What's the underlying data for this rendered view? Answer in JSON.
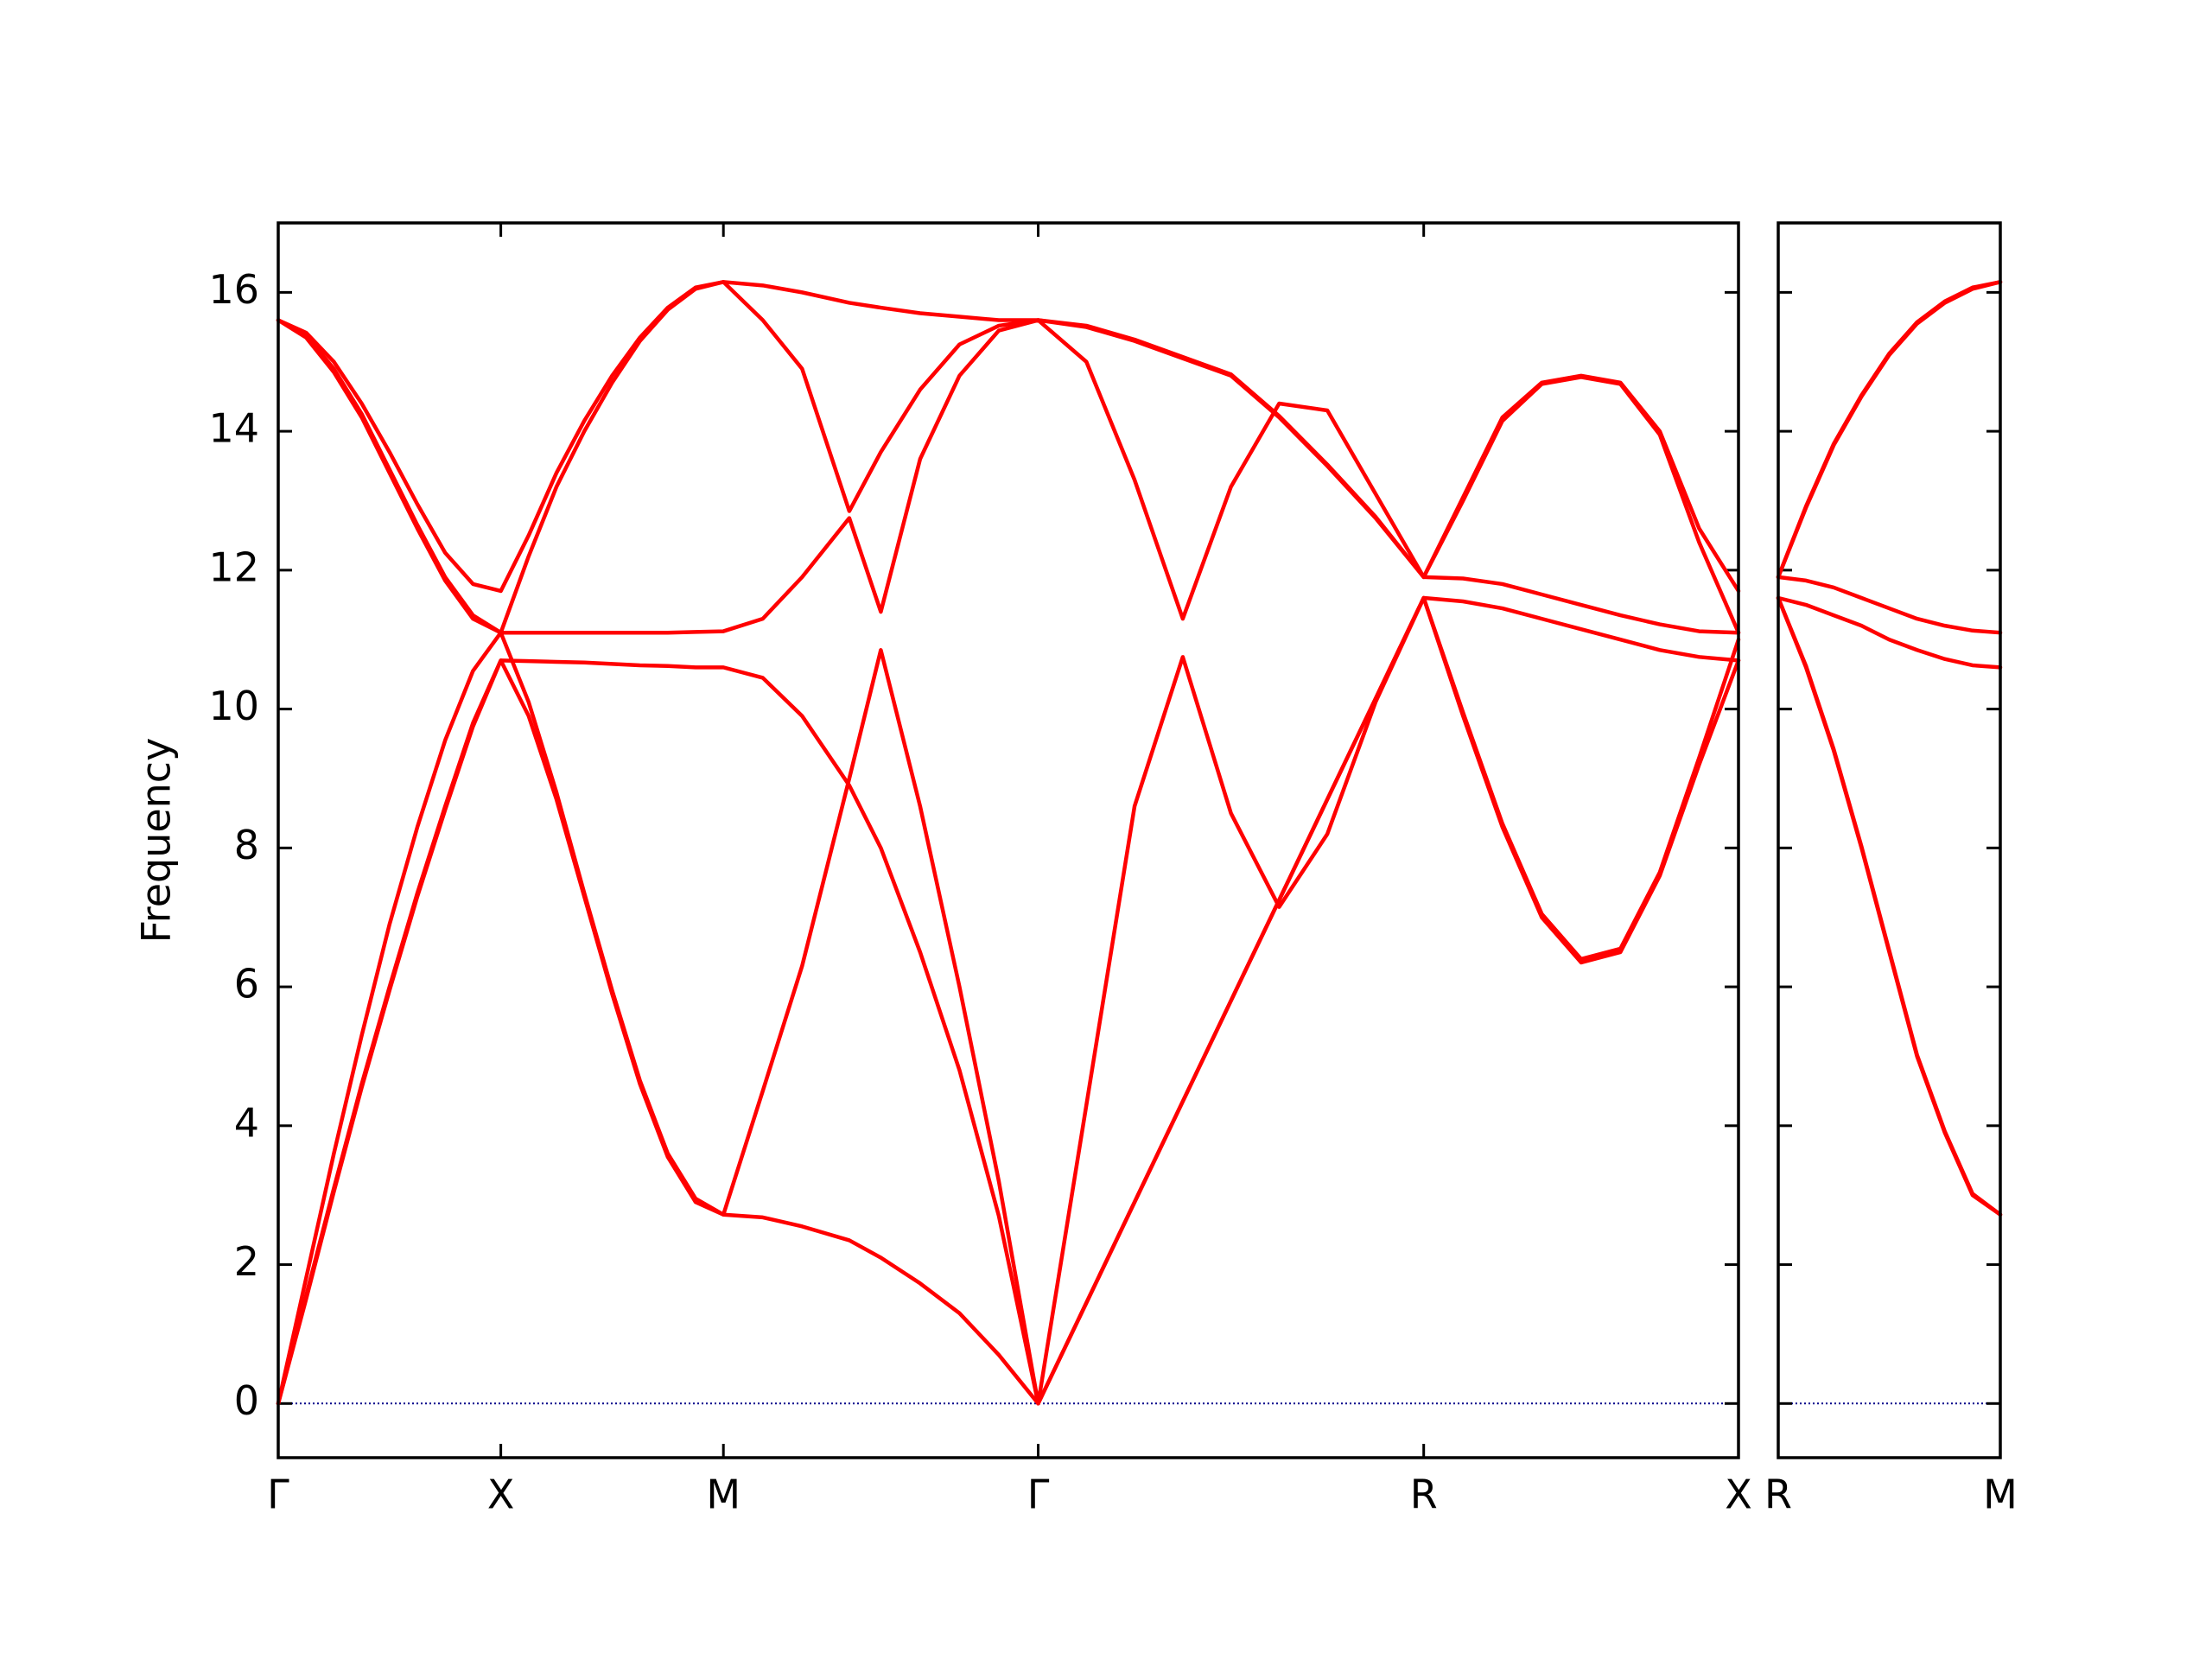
{
  "chart_data": [
    {
      "type": "line",
      "ylabel": "Frequency",
      "x": [
        0,
        0.0625,
        0.125,
        0.1875,
        0.25,
        0.3125,
        0.375,
        0.4375,
        0.5,
        0.5625,
        0.625,
        0.6875,
        0.75,
        0.8125,
        0.875,
        0.9375,
        1.0,
        1.0884,
        1.1768,
        1.2828,
        1.3536,
        1.4419,
        1.5303,
        1.6187,
        1.7071,
        1.8154,
        1.9236,
        2.0319,
        2.1401,
        2.2484,
        2.3566,
        2.4649,
        2.5731,
        2.6615,
        2.7499,
        2.8383,
        2.9267,
        3.015,
        3.1034,
        3.1918,
        3.2802
      ],
      "series": [
        {
          "color": "#ff0000",
          "values": [
            0,
            1.55,
            3.1,
            4.6,
            6.0,
            7.35,
            8.6,
            9.8,
            10.7,
            9.9,
            8.7,
            7.3,
            5.9,
            4.6,
            3.55,
            2.9,
            2.72,
            2.68,
            2.55,
            2.35,
            2.1,
            1.73,
            1.3,
            0.7,
            0,
            1.45,
            2.9,
            4.35,
            5.8,
            7.25,
            8.7,
            10.15,
            11.6,
            9.9,
            8.3,
            7.0,
            6.35,
            6.5,
            7.6,
            9.2,
            10.7
          ]
        },
        {
          "color": "#ff0000",
          "values": [
            0,
            1.5,
            3.05,
            4.55,
            5.95,
            7.3,
            8.55,
            9.75,
            10.7,
            10.69,
            10.68,
            10.67,
            10.65,
            10.63,
            10.62,
            10.6,
            10.6,
            10.45,
            9.9,
            8.9,
            8.0,
            6.5,
            4.8,
            2.7,
            0,
            1.45,
            2.9,
            4.35,
            5.8,
            7.25,
            8.7,
            10.15,
            11.6,
            11.55,
            11.45,
            11.3,
            11.15,
            11.0,
            10.85,
            10.75,
            10.7
          ]
        },
        {
          "color": "#ff0000",
          "values": [
            0,
            1.8,
            3.6,
            5.3,
            6.9,
            8.3,
            9.55,
            10.55,
            11.1,
            11.1,
            11.1,
            11.1,
            11.1,
            11.1,
            11.1,
            11.11,
            11.12,
            11.3,
            11.9,
            12.75,
            11.4,
            13.6,
            14.8,
            15.45,
            15.6,
            15.0,
            13.3,
            11.3,
            13.2,
            14.4,
            14.3,
            13.1,
            11.9,
            13.05,
            14.2,
            14.7,
            14.8,
            14.7,
            14.0,
            12.6,
            11.7
          ]
        },
        {
          "color": "#ff0000",
          "values": [
            15.6,
            15.38,
            14.9,
            14.25,
            13.45,
            12.65,
            11.9,
            11.35,
            11.1,
            12.2,
            13.2,
            14.0,
            14.7,
            15.3,
            15.75,
            16.05,
            16.15,
            15.6,
            14.9,
            12.85,
            13.7,
            14.6,
            15.25,
            15.52,
            15.6,
            15.5,
            15.3,
            15.05,
            14.8,
            14.2,
            13.5,
            12.75,
            11.9,
            13.0,
            14.15,
            14.68,
            14.78,
            14.68,
            13.95,
            12.4,
            11.1
          ]
        },
        {
          "color": "#ff0000",
          "values": [
            15.6,
            15.42,
            15.0,
            14.4,
            13.7,
            12.95,
            12.25,
            11.8,
            11.7,
            12.5,
            13.4,
            14.15,
            14.8,
            15.35,
            15.78,
            16.07,
            16.15,
            16.1,
            16.0,
            15.85,
            15.78,
            15.7,
            15.65,
            15.6,
            15.6,
            15.52,
            15.32,
            15.07,
            14.82,
            14.22,
            13.52,
            12.77,
            11.9,
            11.88,
            11.8,
            11.65,
            11.5,
            11.35,
            11.22,
            11.12,
            11.1
          ]
        },
        {
          "color": "#ff0000",
          "values": [
            15.6,
            15.35,
            14.85,
            14.2,
            13.4,
            12.6,
            11.85,
            11.3,
            11.1,
            10.1,
            8.8,
            7.35,
            5.95,
            4.65,
            3.6,
            2.95,
            2.72,
            4.5,
            6.3,
            9.0,
            10.85,
            8.6,
            6.0,
            3.2,
            0,
            4.3,
            8.6,
            10.75,
            8.5,
            7.15,
            8.2,
            10.1,
            11.6,
            9.95,
            8.35,
            7.05,
            6.4,
            6.55,
            7.65,
            9.3,
            11.0
          ]
        }
      ],
      "xlim": [
        0,
        3.2802
      ],
      "xticks": [
        {
          "value": 0,
          "label": "Γ"
        },
        {
          "value": 0.5,
          "label": "X"
        },
        {
          "value": 1.0,
          "label": "M"
        },
        {
          "value": 1.7071,
          "label": "Γ"
        },
        {
          "value": 2.5731,
          "label": "R"
        },
        {
          "value": 3.2802,
          "label": "X"
        }
      ],
      "ylim": [
        -0.78,
        17.0
      ],
      "yticks": [
        0,
        2,
        4,
        6,
        8,
        10,
        12,
        14,
        16
      ],
      "ytick_labels": true,
      "hline": 0,
      "hline_color": "#00008b"
    },
    {
      "type": "line",
      "x": [
        3.2802,
        3.3427,
        3.4052,
        3.4677,
        3.5302,
        3.5927,
        3.6552,
        3.7177,
        3.7802
      ],
      "series": [
        {
          "color": "#ff0000",
          "values": [
            11.9,
            12.9,
            13.8,
            14.5,
            15.1,
            15.55,
            15.85,
            16.05,
            16.15
          ]
        },
        {
          "color": "#ff0000",
          "values": [
            11.9,
            12.92,
            13.82,
            14.52,
            15.12,
            15.57,
            15.87,
            16.07,
            16.15
          ]
        },
        {
          "color": "#ff0000",
          "values": [
            11.9,
            11.85,
            11.75,
            11.6,
            11.45,
            11.3,
            11.2,
            11.13,
            11.1
          ]
        },
        {
          "color": "#ff0000",
          "values": [
            11.6,
            11.5,
            11.35,
            11.2,
            11.0,
            10.85,
            10.72,
            10.63,
            10.6
          ]
        },
        {
          "color": "#ff0000",
          "values": [
            11.6,
            10.6,
            9.4,
            8.0,
            6.5,
            5.0,
            3.9,
            3.0,
            2.72
          ]
        },
        {
          "color": "#ff0000",
          "values": [
            11.6,
            10.62,
            9.42,
            8.02,
            6.52,
            5.02,
            3.92,
            3.02,
            2.72
          ]
        }
      ],
      "xlim": [
        3.2802,
        3.7802
      ],
      "xticks": [
        {
          "value": 3.2802,
          "label": "R"
        },
        {
          "value": 3.7802,
          "label": "M"
        }
      ],
      "ylim": [
        -0.78,
        17.0
      ],
      "yticks": [
        0,
        2,
        4,
        6,
        8,
        10,
        12,
        14,
        16
      ],
      "ytick_labels": false,
      "hline": 0,
      "hline_color": "#00008b"
    }
  ]
}
